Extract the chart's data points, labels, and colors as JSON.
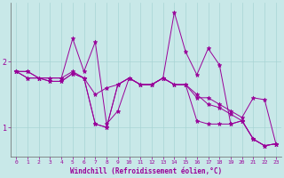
{
  "xlabel": "Windchill (Refroidissement éolien,°C)",
  "background_color": "#c8e8e8",
  "line_color": "#990099",
  "xlim": [
    -0.5,
    23.5
  ],
  "ylim": [
    0.55,
    2.9
  ],
  "yticks": [
    1,
    2
  ],
  "xticks": [
    0,
    1,
    2,
    3,
    4,
    5,
    6,
    7,
    8,
    9,
    10,
    11,
    12,
    13,
    14,
    15,
    16,
    17,
    18,
    19,
    20,
    21,
    22,
    23
  ],
  "series": [
    [
      1.85,
      1.85,
      1.75,
      1.75,
      1.75,
      2.35,
      1.85,
      2.3,
      1.05,
      1.25,
      1.75,
      1.65,
      1.65,
      1.75,
      2.75,
      2.15,
      1.8,
      2.2,
      1.95,
      1.05,
      1.1,
      0.82,
      0.72,
      0.75
    ],
    [
      1.85,
      1.85,
      1.75,
      1.75,
      1.75,
      1.85,
      1.75,
      1.05,
      1.0,
      1.65,
      1.75,
      1.65,
      1.65,
      1.75,
      1.65,
      1.65,
      1.45,
      1.45,
      1.35,
      1.25,
      1.15,
      1.45,
      1.42,
      0.75
    ],
    [
      1.85,
      1.75,
      1.75,
      1.7,
      1.7,
      1.82,
      1.75,
      1.05,
      1.0,
      1.65,
      1.75,
      1.65,
      1.65,
      1.75,
      1.65,
      1.65,
      1.1,
      1.05,
      1.05,
      1.05,
      1.1,
      0.82,
      0.72,
      0.75
    ],
    [
      1.85,
      1.75,
      1.75,
      1.7,
      1.7,
      1.82,
      1.75,
      1.5,
      1.6,
      1.65,
      1.75,
      1.65,
      1.65,
      1.75,
      1.65,
      1.65,
      1.5,
      1.35,
      1.3,
      1.2,
      1.1,
      0.82,
      0.72,
      0.75
    ]
  ],
  "trend_series": [
    {
      "x": [
        0,
        23
      ],
      "y": [
        1.85,
        0.72
      ]
    },
    {
      "x": [
        0,
        23
      ],
      "y": [
        1.85,
        0.72
      ]
    },
    {
      "x": [
        2,
        23
      ],
      "y": [
        1.75,
        1.42
      ]
    },
    {
      "x": [
        0,
        23
      ],
      "y": [
        1.85,
        0.72
      ]
    }
  ]
}
